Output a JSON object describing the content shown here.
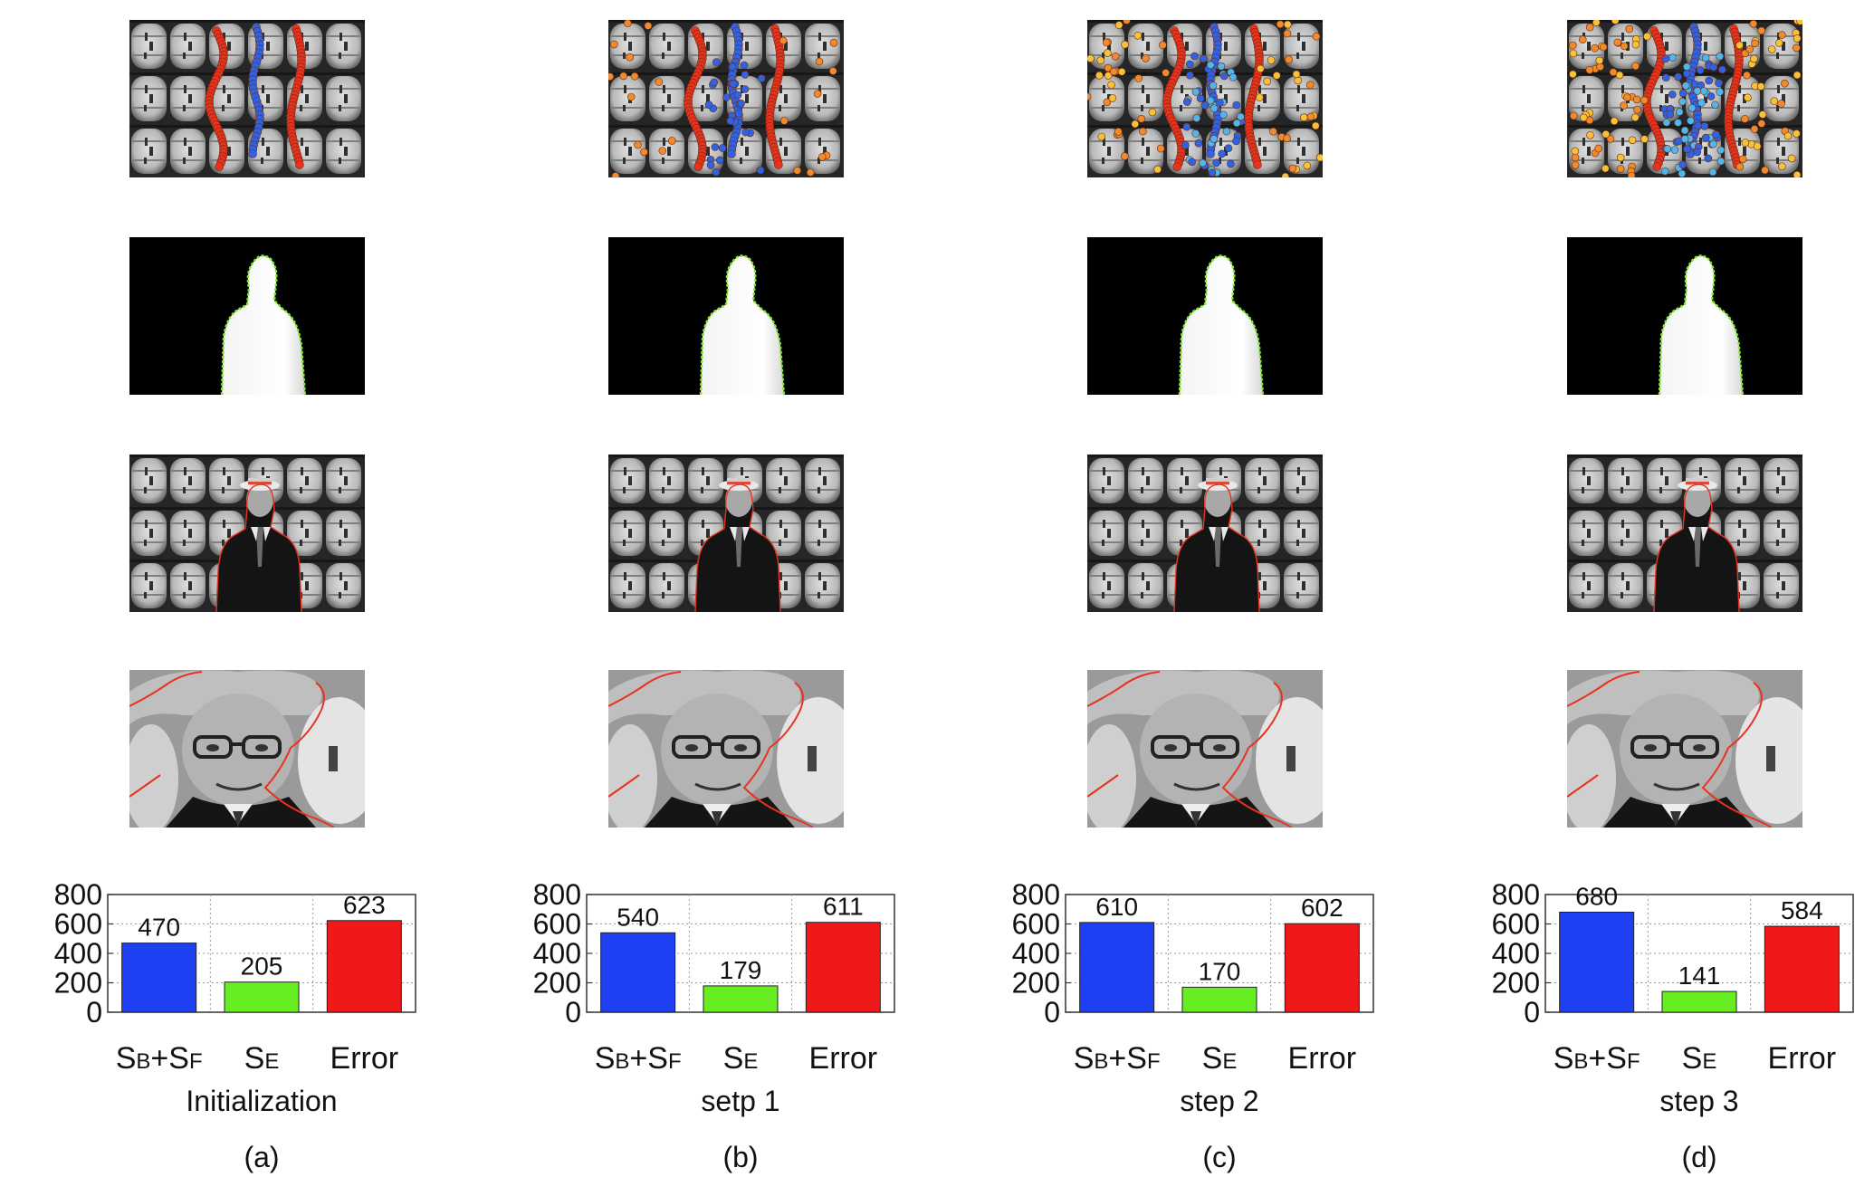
{
  "colors": {
    "sb_sf": "#1f3ff2",
    "se": "#66ee22",
    "error": "#f01818",
    "seed_red": "#e8321e",
    "seed_blue": "#2f63e6",
    "seed_orange": "#f08a2c",
    "seed_yellow": "#f7c23a",
    "seed_cyan": "#4fb6ee",
    "boundary_green": "#7dea2a"
  },
  "chart_data": [
    {
      "type": "bar",
      "categories": [
        "SB+SF",
        "SE",
        "Error"
      ],
      "category_parts": [
        [
          {
            "t": "S",
            "s": false
          },
          {
            "t": "B",
            "s": true
          },
          {
            "t": "+S",
            "s": false
          },
          {
            "t": "F",
            "s": true
          }
        ],
        [
          {
            "t": "S",
            "s": false
          },
          {
            "t": "E",
            "s": true
          }
        ],
        [
          {
            "t": "Error",
            "s": false
          }
        ]
      ],
      "values": [
        470,
        205,
        623
      ],
      "value_labels": [
        "470",
        "205",
        "623"
      ],
      "ylim": [
        0,
        800
      ],
      "yticks": [
        0,
        200,
        400,
        600,
        800
      ],
      "ytick_labels": [
        "0",
        "200",
        "400",
        "600",
        "800"
      ],
      "grid": true,
      "title": "Initialization",
      "panel": "(a)"
    },
    {
      "type": "bar",
      "categories": [
        "SB+SF",
        "SE",
        "Error"
      ],
      "category_parts": [
        [
          {
            "t": "S",
            "s": false
          },
          {
            "t": "B",
            "s": true
          },
          {
            "t": "+S",
            "s": false
          },
          {
            "t": "F",
            "s": true
          }
        ],
        [
          {
            "t": "S",
            "s": false
          },
          {
            "t": "E",
            "s": true
          }
        ],
        [
          {
            "t": "Error",
            "s": false
          }
        ]
      ],
      "values": [
        540,
        179,
        611
      ],
      "value_labels": [
        "540",
        "179",
        "611"
      ],
      "ylim": [
        0,
        800
      ],
      "yticks": [
        0,
        200,
        400,
        600,
        800
      ],
      "ytick_labels": [
        "0",
        "200",
        "400",
        "600",
        "800"
      ],
      "grid": true,
      "title": "setp 1",
      "panel": "(b)"
    },
    {
      "type": "bar",
      "categories": [
        "SB+SF",
        "SE",
        "Error"
      ],
      "category_parts": [
        [
          {
            "t": "S",
            "s": false
          },
          {
            "t": "B",
            "s": true
          },
          {
            "t": "+S",
            "s": false
          },
          {
            "t": "F",
            "s": true
          }
        ],
        [
          {
            "t": "S",
            "s": false
          },
          {
            "t": "E",
            "s": true
          }
        ],
        [
          {
            "t": "Error",
            "s": false
          }
        ]
      ],
      "values": [
        610,
        170,
        602
      ],
      "value_labels": [
        "610",
        "170",
        "602"
      ],
      "ylim": [
        0,
        800
      ],
      "yticks": [
        0,
        200,
        400,
        600,
        800
      ],
      "ytick_labels": [
        "0",
        "200",
        "400",
        "600",
        "800"
      ],
      "grid": true,
      "title": "step 2",
      "panel": "(c)"
    },
    {
      "type": "bar",
      "categories": [
        "SB+SF",
        "SE",
        "Error"
      ],
      "category_parts": [
        [
          {
            "t": "S",
            "s": false
          },
          {
            "t": "B",
            "s": true
          },
          {
            "t": "+S",
            "s": false
          },
          {
            "t": "F",
            "s": true
          }
        ],
        [
          {
            "t": "S",
            "s": false
          },
          {
            "t": "E",
            "s": true
          }
        ],
        [
          {
            "t": "Error",
            "s": false
          }
        ]
      ],
      "values": [
        680,
        141,
        584
      ],
      "value_labels": [
        "680",
        "141",
        "584"
      ],
      "ylim": [
        0,
        800
      ],
      "yticks": [
        0,
        200,
        400,
        600,
        800
      ],
      "ytick_labels": [
        "0",
        "200",
        "400",
        "600",
        "800"
      ],
      "grid": true,
      "title": "step 3",
      "panel": "(d)"
    }
  ],
  "seed_stage": [
    1,
    2,
    3,
    4
  ]
}
